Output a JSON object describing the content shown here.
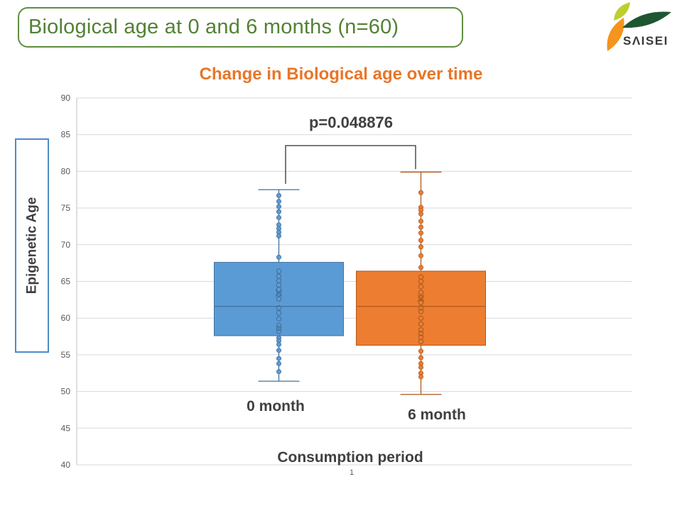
{
  "header": {
    "title": "Biological age at 0 and 6 months (n=60)"
  },
  "logo": {
    "text": "SΛISEI"
  },
  "footer": {
    "page_number": "1"
  },
  "colors": {
    "slide_title_green": "#538135",
    "chart_title_orange": "#E87629",
    "text_dark_gray": "#404040",
    "gridline_gray": "#D9D9D9",
    "axis_gray": "#BFBFBF",
    "tick_label_gray": "#595959",
    "bracket_dark": "#404040",
    "logo_orange": "#F5941E",
    "logo_lime": "#BCCF2F",
    "logo_dark_green": "#1E5631",
    "ylabel_box_border_blue": "#4E8CC6"
  },
  "chart_data": {
    "type": "boxplot",
    "title": "Change in Biological age over time",
    "xlabel": "Consumption period",
    "ylabel": "Epigenetic Age",
    "ylim": [
      40,
      90
    ],
    "ytick_step": 5,
    "grid": true,
    "categories": [
      "0 month",
      "6 month"
    ],
    "annotation": {
      "text": "p=0.048876"
    },
    "significance_bracket": {
      "top": 83.5,
      "left_end": 78.3,
      "right_end": 80.3
    },
    "series": [
      {
        "label": "0 month",
        "color": "#5B9BD5",
        "stroke": "#41719C",
        "min": 51.4,
        "q1": 57.6,
        "median": 61.6,
        "q3": 67.6,
        "max": 77.5,
        "mean": 63.4,
        "points_above": [
          76.7,
          75.9,
          75.2,
          74.5,
          73.7,
          72.7,
          72.2,
          71.7,
          71.2,
          68.3
        ],
        "points_inside": [
          66.4,
          65.7,
          65.1,
          64.5,
          63.9,
          63.3,
          62.6,
          61.4,
          60.7,
          59.9,
          59.0,
          58.6,
          58.2
        ],
        "points_below": [
          57.3,
          56.9,
          56.4,
          55.6,
          54.5,
          53.8,
          52.7
        ]
      },
      {
        "label": "6 month",
        "color": "#ED7D31",
        "stroke": "#AE5A21",
        "min": 49.6,
        "q1": 56.3,
        "median": 61.6,
        "q3": 66.4,
        "max": 79.9,
        "mean": 62.7,
        "points_above": [
          77.1,
          75.1,
          74.7,
          74.2,
          73.2,
          72.4,
          71.6,
          70.6,
          69.7,
          68.5,
          66.9
        ],
        "points_inside": [
          65.6,
          65.0,
          64.3,
          63.5,
          62.8,
          62.1,
          61.4,
          60.9,
          60.0,
          59.2,
          58.4,
          57.9,
          57.4,
          56.8
        ],
        "points_below": [
          55.5,
          54.6,
          53.8,
          53.3,
          52.5,
          52.0
        ]
      }
    ]
  }
}
